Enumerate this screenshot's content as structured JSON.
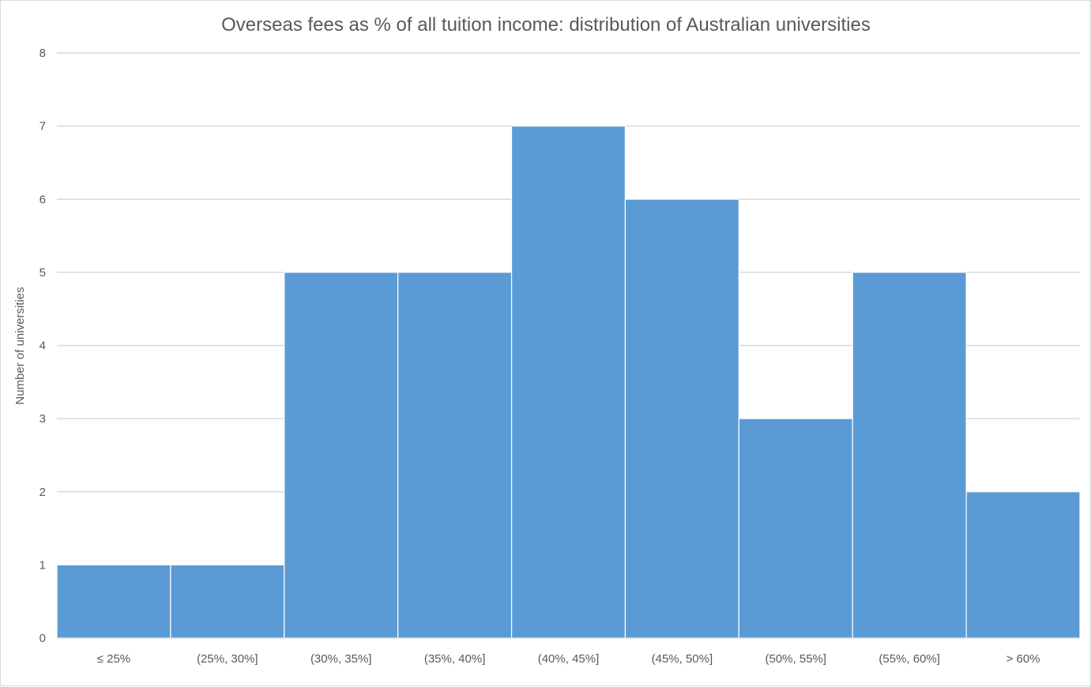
{
  "chart_data": {
    "type": "bar",
    "title": "Overseas fees as % of all tuition income: distribution of Australian universities",
    "xlabel": "",
    "ylabel": "Number of universities",
    "categories": [
      "≤ 25%",
      "(25%, 30%]",
      "(30%, 35%]",
      "(35%, 40%]",
      "(40%, 45%]",
      "(45%, 50%]",
      "(50%, 55%]",
      "(55%, 60%]",
      "> 60%"
    ],
    "values": [
      1,
      1,
      5,
      5,
      7,
      6,
      3,
      5,
      2
    ],
    "ylim": [
      0,
      8
    ],
    "yticks": [
      "0",
      "1",
      "2",
      "3",
      "4",
      "5",
      "6",
      "7",
      "8"
    ],
    "grid": true,
    "bar_color": "#5B9BD5",
    "bar_edge_color": "#ffffff",
    "grid_color": "#d9d9d9",
    "text_color": "#595959"
  }
}
